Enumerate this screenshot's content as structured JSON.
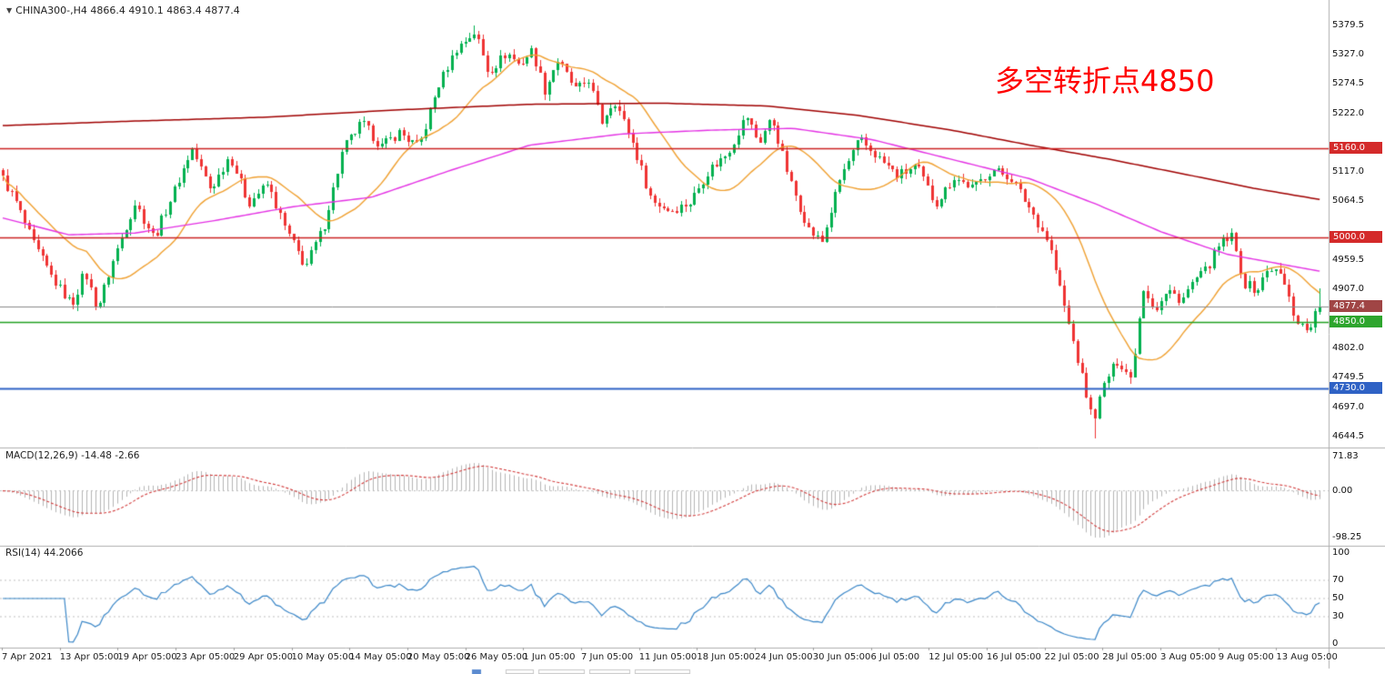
{
  "header": {
    "marker": "▼",
    "title": "CHINA300-,H4 4866.4 4910.1 4863.4 4877.4"
  },
  "annotation": {
    "text": "多空转折点4850",
    "color": "#ff0000"
  },
  "colors": {
    "up": "#00b14f",
    "down": "#ef3333",
    "ma_fast": "#f0a030",
    "ma_mid": "#e431e4",
    "ma_slow": "#a00000",
    "hline_red": "#cc2222",
    "hline_green": "#21a121",
    "hline_blue": "#2f62c5",
    "current_line": "#8a8a8a",
    "current_tag_bg": "#a04545",
    "tag_red_bg": "#d42a2a",
    "tag_green_bg": "#2da52d",
    "tag_blue_bg": "#2f62c5",
    "macd_hist": "#b5b5b5",
    "macd_signal": "#d23a3a",
    "rsi_line": "#3b87c8",
    "separator": "#b0b0b0",
    "axis_text": "#111111",
    "grid_dotted": "#c0c0c0"
  },
  "chart_data": {
    "type": "candlestick",
    "symbol": "CHINA300-",
    "timeframe": "H4",
    "ohlc_current": {
      "open": 4866.4,
      "high": 4910.1,
      "low": 4863.4,
      "close": 4877.4
    },
    "session_high": {
      "t": 0.3589,
      "price": 5379.5
    },
    "session_low": {
      "t": 0.8278,
      "price": 4641.5
    },
    "bars": 300,
    "path_domain": 209,
    "noise_amp": 9,
    "wick_amp": 11,
    "y_range": {
      "top": 5395,
      "bottom": 4630
    },
    "y_ticks": [
      5379.5,
      5327.0,
      5274.5,
      5222.0,
      5117.0,
      5064.5,
      4959.5,
      4907.0,
      4802.0,
      4749.5,
      4697.0,
      4644.5
    ],
    "h_lines": [
      {
        "price": 5160.0,
        "label": "5160.0",
        "color_key": "hline_red",
        "tag_key": "tag_red_bg"
      },
      {
        "price": 5000.0,
        "label": "5000.0",
        "color_key": "hline_red",
        "tag_key": "tag_red_bg"
      },
      {
        "price": 4850.0,
        "label": "4850.0",
        "color_key": "hline_green",
        "tag_key": "tag_green_bg"
      },
      {
        "price": 4730.0,
        "label": "4730.0",
        "color_key": "hline_blue",
        "tag_key": "tag_blue_bg"
      }
    ],
    "current_price": {
      "price": 4877.4,
      "label": "4877.4"
    },
    "close_path": [
      [
        0,
        5105
      ],
      [
        2,
        5065
      ],
      [
        5,
        4985
      ],
      [
        8,
        4925
      ],
      [
        11,
        4880
      ],
      [
        13,
        4940
      ],
      [
        15,
        4872
      ],
      [
        18,
        4975
      ],
      [
        21,
        5062
      ],
      [
        24,
        5000
      ],
      [
        27,
        5078
      ],
      [
        30,
        5160
      ],
      [
        33,
        5085
      ],
      [
        36,
        5148
      ],
      [
        39,
        5062
      ],
      [
        42,
        5095
      ],
      [
        45,
        5012
      ],
      [
        48,
        4948
      ],
      [
        51,
        5022
      ],
      [
        54,
        5158
      ],
      [
        57,
        5205
      ],
      [
        60,
        5162
      ],
      [
        63,
        5188
      ],
      [
        66,
        5160
      ],
      [
        69,
        5268
      ],
      [
        72,
        5338
      ],
      [
        75,
        5368
      ],
      [
        77,
        5295
      ],
      [
        80,
        5330
      ],
      [
        82,
        5308
      ],
      [
        84,
        5335
      ],
      [
        86,
        5262
      ],
      [
        88,
        5318
      ],
      [
        91,
        5262
      ],
      [
        93,
        5282
      ],
      [
        95,
        5205
      ],
      [
        97,
        5248
      ],
      [
        100,
        5168
      ],
      [
        103,
        5065
      ],
      [
        106,
        5048
      ],
      [
        109,
        5062
      ],
      [
        112,
        5120
      ],
      [
        115,
        5150
      ],
      [
        118,
        5218
      ],
      [
        120,
        5168
      ],
      [
        122,
        5215
      ],
      [
        125,
        5098
      ],
      [
        128,
        5012
      ],
      [
        130,
        4992
      ],
      [
        133,
        5110
      ],
      [
        136,
        5175
      ],
      [
        139,
        5142
      ],
      [
        142,
        5110
      ],
      [
        145,
        5128
      ],
      [
        148,
        5060
      ],
      [
        151,
        5108
      ],
      [
        154,
        5088
      ],
      [
        157,
        5122
      ],
      [
        160,
        5108
      ],
      [
        163,
        5052
      ],
      [
        166,
        4992
      ],
      [
        169,
        4852
      ],
      [
        171,
        4762
      ],
      [
        173,
        4672
      ],
      [
        175,
        4745
      ],
      [
        177,
        4782
      ],
      [
        179,
        4748
      ],
      [
        181,
        4912
      ],
      [
        183,
        4872
      ],
      [
        185,
        4905
      ],
      [
        187,
        4888
      ],
      [
        189,
        4922
      ],
      [
        191,
        4942
      ],
      [
        193,
        4985
      ],
      [
        195,
        5002
      ],
      [
        197,
        4918
      ],
      [
        199,
        4905
      ],
      [
        201,
        4948
      ],
      [
        203,
        4930
      ],
      [
        205,
        4858
      ],
      [
        207,
        4834
      ],
      [
        209,
        4877
      ]
    ],
    "ma_fast_window": 20,
    "ma_mid_path": [
      [
        0,
        5035
      ],
      [
        0.05,
        5005
      ],
      [
        0.1,
        5008
      ],
      [
        0.16,
        5030
      ],
      [
        0.22,
        5055
      ],
      [
        0.28,
        5072
      ],
      [
        0.34,
        5120
      ],
      [
        0.4,
        5165
      ],
      [
        0.47,
        5185
      ],
      [
        0.54,
        5192
      ],
      [
        0.6,
        5195
      ],
      [
        0.66,
        5175
      ],
      [
        0.72,
        5140
      ],
      [
        0.78,
        5105
      ],
      [
        0.83,
        5060
      ],
      [
        0.88,
        5010
      ],
      [
        0.93,
        4970
      ],
      [
        1,
        4940
      ]
    ],
    "ma_slow_path": [
      [
        0,
        5200
      ],
      [
        0.1,
        5208
      ],
      [
        0.2,
        5215
      ],
      [
        0.3,
        5228
      ],
      [
        0.4,
        5238
      ],
      [
        0.5,
        5240
      ],
      [
        0.58,
        5235
      ],
      [
        0.65,
        5218
      ],
      [
        0.72,
        5192
      ],
      [
        0.78,
        5165
      ],
      [
        0.84,
        5140
      ],
      [
        0.9,
        5112
      ],
      [
        0.95,
        5088
      ],
      [
        1,
        5068
      ]
    ],
    "x_labels": [
      "7 Apr 2021",
      "13 Apr 05:00",
      "19 Apr 05:00",
      "23 Apr 05:00",
      "29 Apr 05:00",
      "10 May 05:00",
      "14 May 05:00",
      "20 May 05:00",
      "26 May 05:00",
      "1 Jun 05:00",
      "7 Jun 05:00",
      "11 Jun 05:00",
      "18 Jun 05:00",
      "24 Jun 05:00",
      "30 Jun 05:00",
      "6 Jul 05:00",
      "12 Jul 05:00",
      "16 Jul 05:00",
      "22 Jul 05:00",
      "28 Jul 05:00",
      "3 Aug 05:00",
      "9 Aug 05:00",
      "13 Aug 05:00"
    ],
    "macd": {
      "label": "MACD(12,26,9)",
      "values_text": "-14.48 -2.66",
      "fast": 12,
      "slow": 26,
      "signal": 9,
      "axis_labels": [
        "71.83",
        "0.00",
        "-98.25"
      ],
      "range": {
        "top": 71.83,
        "bottom": -98.25
      }
    },
    "rsi": {
      "label": "RSI(14)",
      "value_text": "44.2066",
      "period": 14,
      "axis_labels": [
        "100",
        "70",
        "50",
        "30",
        "0"
      ],
      "levels": [
        70,
        50,
        30
      ],
      "range": {
        "top": 100,
        "bottom": 0
      }
    }
  }
}
